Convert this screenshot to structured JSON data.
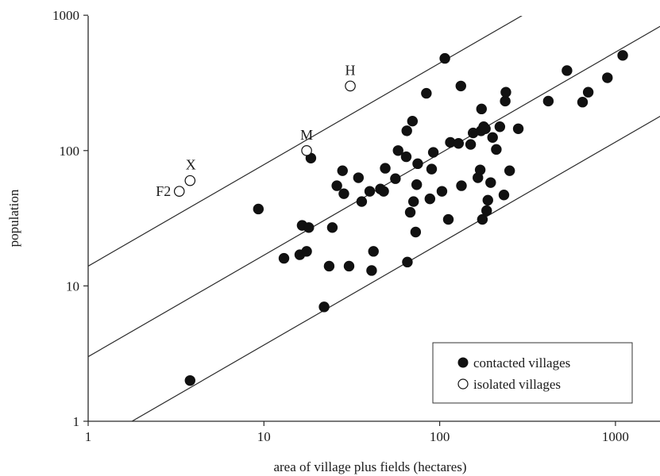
{
  "chart_data": {
    "type": "scatter",
    "title": "",
    "xlabel": "area of village plus fields (hectares)",
    "ylabel": "population",
    "xscale": "log",
    "yscale": "log",
    "xlim": [
      1,
      2000
    ],
    "ylim": [
      1,
      1000
    ],
    "xticks": [
      {
        "value": 1,
        "label": "1"
      },
      {
        "value": 10,
        "label": "10"
      },
      {
        "value": 100,
        "label": "100"
      },
      {
        "value": 1000,
        "label": "1000"
      }
    ],
    "yticks": [
      {
        "value": 1,
        "label": "1"
      },
      {
        "value": 10,
        "label": "10"
      },
      {
        "value": 100,
        "label": "100"
      },
      {
        "value": 1000,
        "label": "1000"
      }
    ],
    "grid": false,
    "legend_position": "bottom-right",
    "legend": [
      {
        "label": "contacted villages",
        "marker": "filled-circle"
      },
      {
        "label": "isolated villages",
        "marker": "open-circle"
      }
    ],
    "reference_lines": [
      {
        "slope": 0.75,
        "intercept_at_x1": 14
      },
      {
        "slope": 0.75,
        "intercept_at_x1": 3
      },
      {
        "slope": 0.75,
        "intercept_at_x1": 0.65
      }
    ],
    "series": [
      {
        "name": "contacted villages",
        "marker": "filled",
        "points": [
          [
            3.8,
            2
          ],
          [
            9.3,
            37
          ],
          [
            13,
            16
          ],
          [
            16,
            17
          ],
          [
            16.5,
            28
          ],
          [
            17.5,
            18
          ],
          [
            18,
            27
          ],
          [
            18.5,
            88
          ],
          [
            22,
            7
          ],
          [
            23.5,
            14
          ],
          [
            24.5,
            27
          ],
          [
            26,
            55
          ],
          [
            28,
            71
          ],
          [
            28.5,
            48
          ],
          [
            30.5,
            14
          ],
          [
            34.5,
            63
          ],
          [
            36,
            42
          ],
          [
            40,
            50
          ],
          [
            41,
            13
          ],
          [
            42,
            18
          ],
          [
            46,
            52
          ],
          [
            48,
            50
          ],
          [
            49,
            74
          ],
          [
            56,
            62
          ],
          [
            58,
            100
          ],
          [
            64.5,
            90
          ],
          [
            65,
            140
          ],
          [
            65.5,
            15
          ],
          [
            68,
            35
          ],
          [
            70,
            165
          ],
          [
            71,
            42
          ],
          [
            73,
            25
          ],
          [
            74,
            56
          ],
          [
            75,
            80
          ],
          [
            84,
            265
          ],
          [
            88,
            44
          ],
          [
            90,
            73
          ],
          [
            92,
            97
          ],
          [
            103,
            50
          ],
          [
            107,
            480
          ],
          [
            112,
            31
          ],
          [
            115,
            115
          ],
          [
            128,
            113
          ],
          [
            132,
            300
          ],
          [
            133,
            55
          ],
          [
            150,
            111
          ],
          [
            155,
            135
          ],
          [
            165,
            63
          ],
          [
            170,
            72
          ],
          [
            172,
            140
          ],
          [
            173,
            203
          ],
          [
            175,
            31
          ],
          [
            178,
            150
          ],
          [
            182,
            145
          ],
          [
            185,
            36
          ],
          [
            188,
            43
          ],
          [
            195,
            58
          ],
          [
            200,
            125
          ],
          [
            210,
            102
          ],
          [
            220,
            150
          ],
          [
            232,
            47
          ],
          [
            236,
            232
          ],
          [
            238,
            270
          ],
          [
            250,
            71
          ],
          [
            280,
            145
          ],
          [
            415,
            232
          ],
          [
            530,
            390
          ],
          [
            650,
            228
          ],
          [
            700,
            270
          ],
          [
            900,
            345
          ],
          [
            1100,
            505
          ]
        ]
      },
      {
        "name": "isolated villages",
        "marker": "open",
        "points": [
          {
            "x": 3.3,
            "y": 50,
            "label": "F2"
          },
          {
            "x": 3.8,
            "y": 60,
            "label": "X"
          },
          {
            "x": 17.5,
            "y": 100,
            "label": "M"
          },
          {
            "x": 31,
            "y": 300,
            "label": "H"
          }
        ]
      }
    ]
  }
}
